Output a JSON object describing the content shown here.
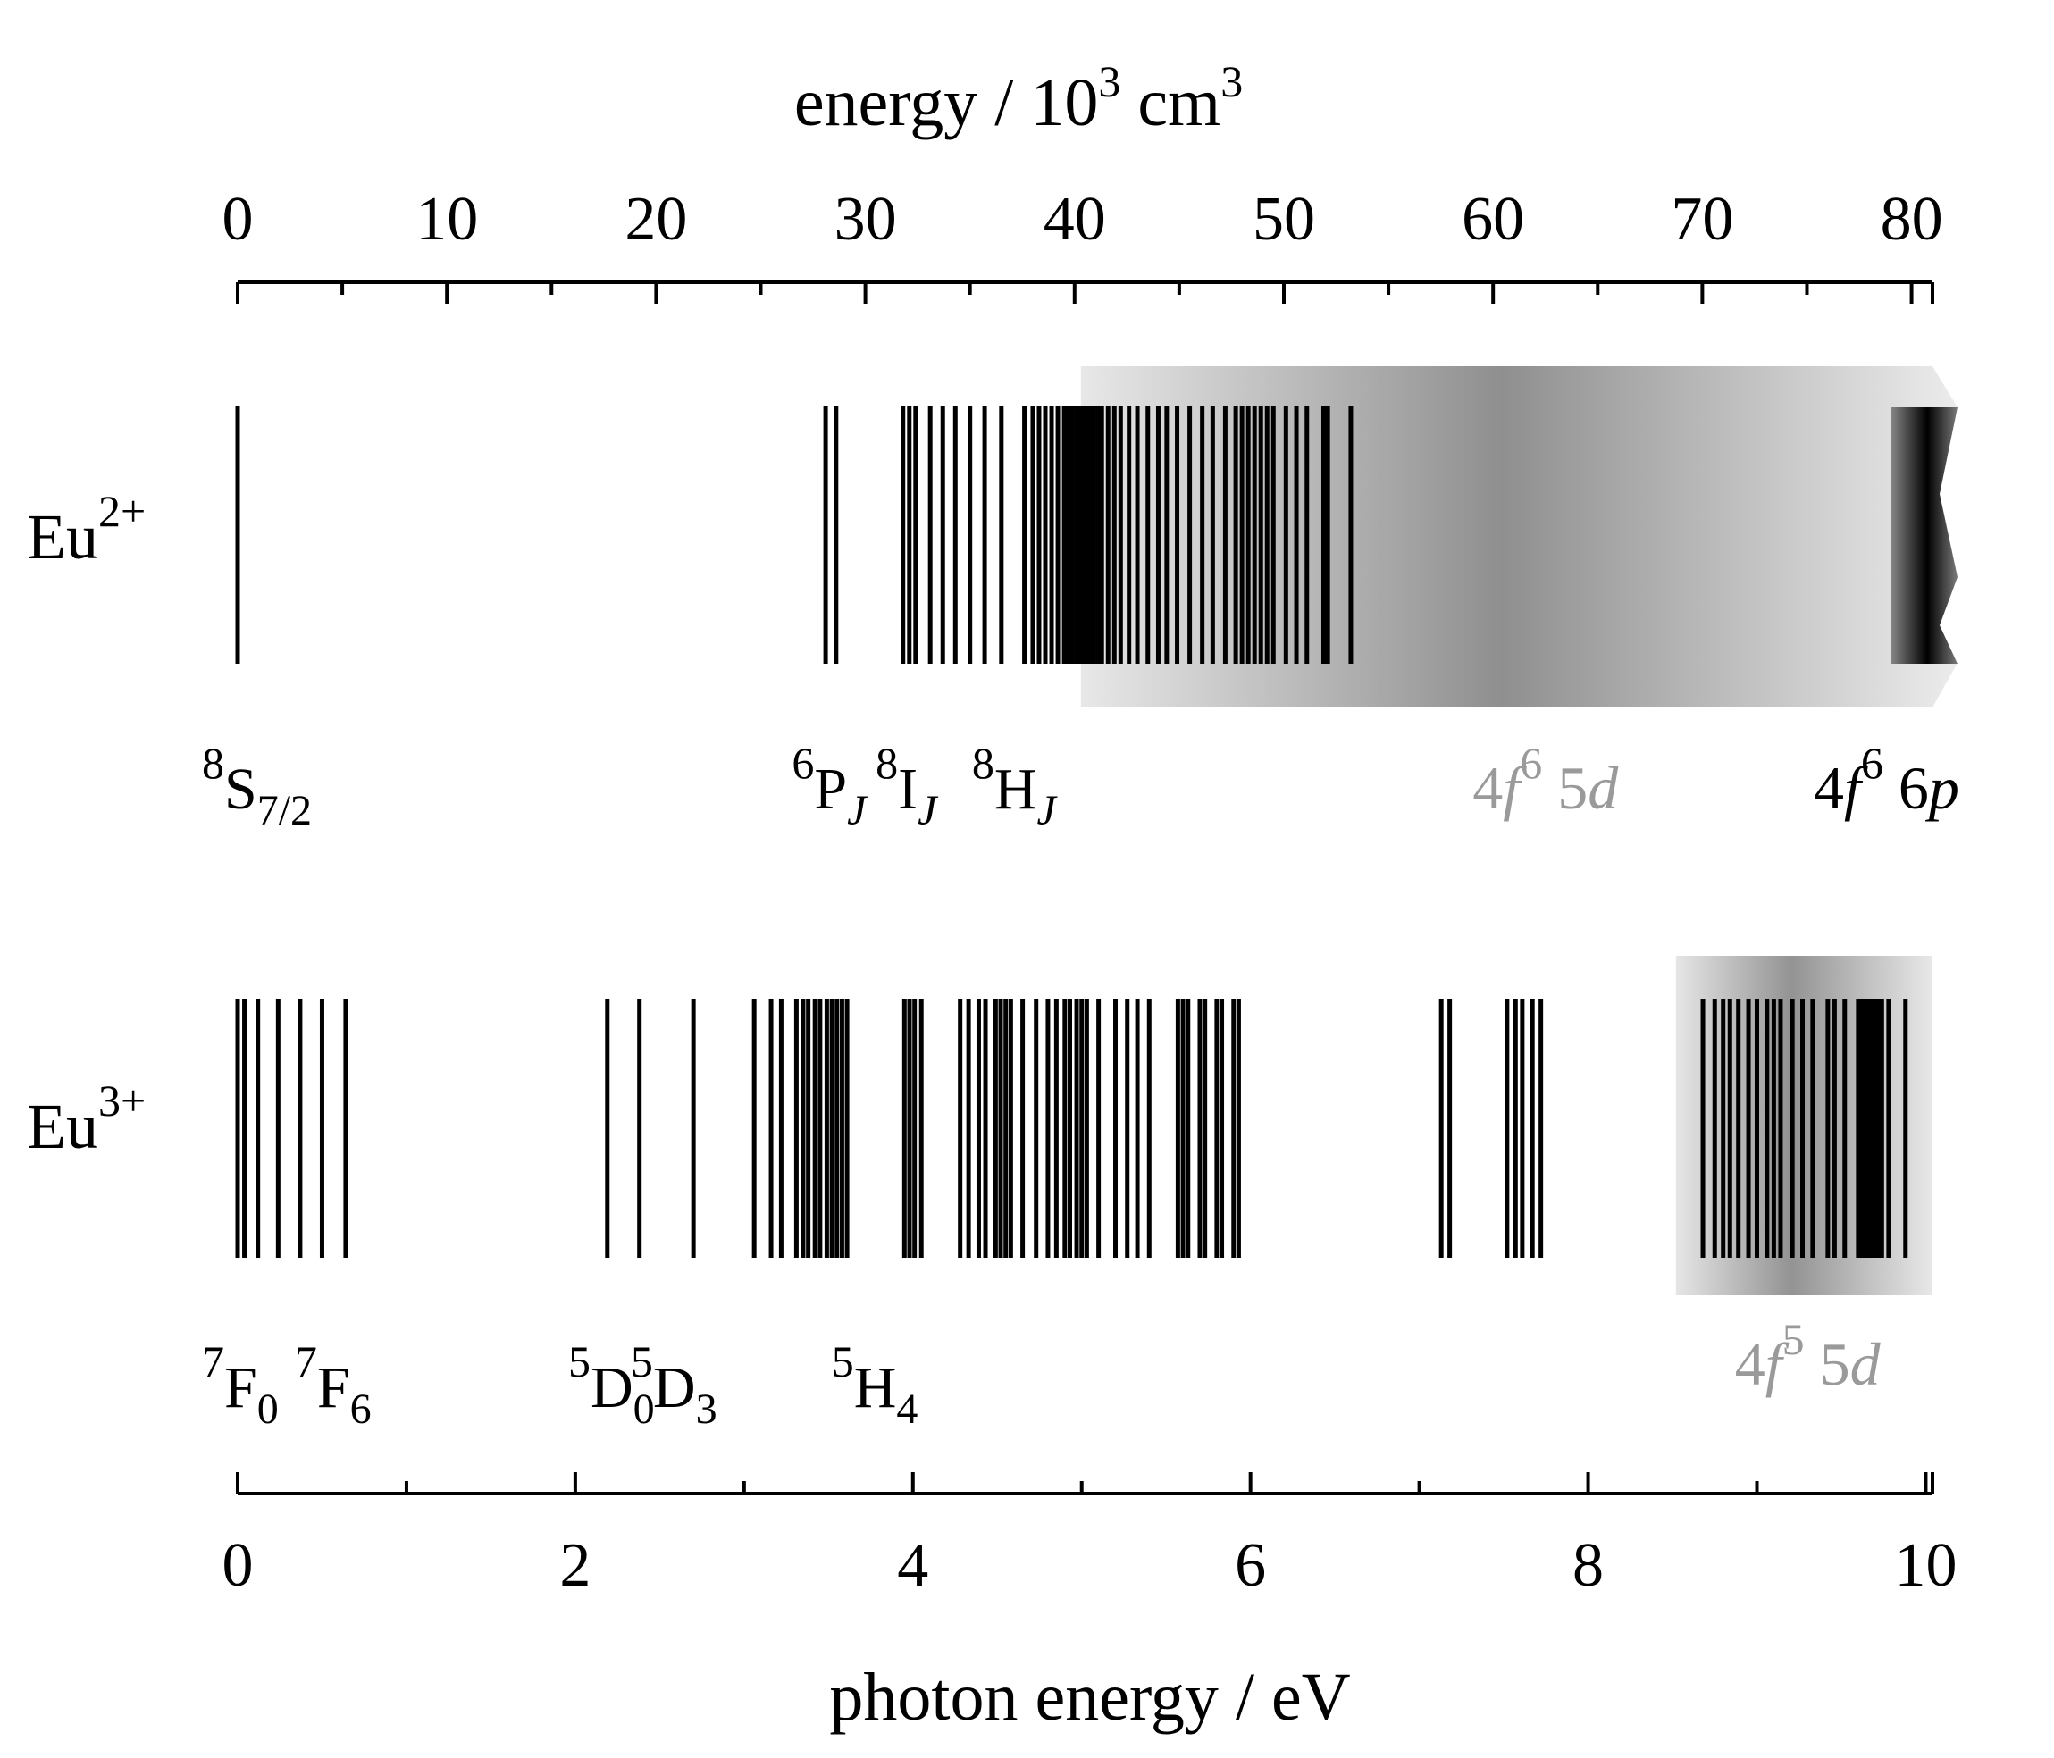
{
  "chart_data": {
    "type": "energy-level-diagram",
    "top_axis": {
      "label": "energy / 10",
      "label_sup": "3",
      "label_unit": "cm",
      "label_unit_sup": "3",
      "range": [
        0,
        81
      ],
      "major_ticks": [
        0,
        10,
        20,
        30,
        40,
        50,
        60,
        70,
        80
      ],
      "tick_labels": [
        "0",
        "10",
        "20",
        "30",
        "40",
        "50",
        "60",
        "70",
        "80"
      ]
    },
    "bottom_axis": {
      "label": "photon energy / eV",
      "range": [
        0,
        10.04
      ],
      "major_ticks": [
        0,
        2,
        4,
        6,
        8,
        10
      ],
      "tick_labels": [
        "0",
        "2",
        "4",
        "6",
        "8",
        "10"
      ]
    },
    "rows": [
      {
        "ion": "Eu",
        "charge": "2+",
        "axis": "top",
        "units": "10^3 cm^-1",
        "levels": [
          0,
          28.1,
          28.6,
          31.8,
          32.1,
          32.4,
          33.1,
          33.7,
          34.3,
          35.0,
          35.7,
          36.5,
          37.6,
          38.0,
          38.3,
          38.6,
          38.9,
          39.2,
          39.5,
          39.7,
          39.9,
          40.1,
          40.3,
          40.5,
          40.7,
          40.9,
          41.1,
          41.3,
          41.6,
          41.9,
          42.2,
          42.6,
          43.0,
          43.5,
          44.0,
          44.4,
          44.9,
          45.5,
          46.1,
          46.6,
          47.2,
          47.7,
          48.0,
          48.3,
          48.6,
          48.9,
          49.2,
          49.5,
          50.1,
          50.6,
          51.1,
          51.9,
          52.1,
          53.2
        ],
        "bands": [
          {
            "config": "4f^6 5d",
            "start": 40.3,
            "end": 81.5,
            "shade": "gradient",
            "peak": 60,
            "color_peak": "#8f8f8f",
            "color_edge": "#e8e8e8"
          },
          {
            "config": "4f^6 6p",
            "start": 79.0,
            "end": 81.0,
            "shade": "dark-gradient",
            "color_peak": "#000000",
            "color_edge": "#888888"
          }
        ],
        "term_labels": [
          {
            "base": "8",
            "term": "S",
            "sub": "7/2",
            "at": 0
          },
          {
            "base": "6",
            "term": "P",
            "sub": "J",
            "at": 28.2
          },
          {
            "base": "8",
            "term": "I",
            "sub": "J",
            "at": 32.2
          },
          {
            "base": "8",
            "term": "H",
            "sub": "J",
            "at": 36.8
          }
        ],
        "config_labels": [
          {
            "pre": "4",
            "ital": "f",
            "sup": "6",
            "post": " 5",
            "ital2": "d",
            "color": "#9a9a9a",
            "at": 62.5
          },
          {
            "pre": "4",
            "ital": "f",
            "sup": "6",
            "post": " 6",
            "ital2": "p",
            "color": "#000000",
            "at": 78.8
          }
        ]
      },
      {
        "ion": "Eu",
        "charge": "3+",
        "axis": "bottom",
        "units": "eV",
        "levels": [
          0.0,
          0.04,
          0.12,
          0.24,
          0.37,
          0.5,
          0.64,
          2.19,
          2.38,
          2.7,
          3.06,
          3.16,
          3.22,
          3.31,
          3.35,
          3.38,
          3.42,
          3.45,
          3.49,
          3.52,
          3.55,
          3.58,
          3.61,
          3.95,
          3.98,
          4.01,
          4.05,
          4.28,
          4.33,
          4.39,
          4.43,
          4.49,
          4.52,
          4.55,
          4.58,
          4.65,
          4.73,
          4.8,
          4.85,
          4.9,
          4.93,
          4.97,
          5.0,
          5.03,
          5.1,
          5.2,
          5.27,
          5.33,
          5.4,
          5.57,
          5.6,
          5.63,
          5.7,
          5.73,
          5.8,
          5.83,
          5.9,
          5.93,
          7.13,
          7.18,
          7.52,
          7.57,
          7.61,
          7.67,
          7.72,
          8.68,
          8.75,
          8.8,
          8.84,
          8.89,
          8.95,
          9.0,
          9.06,
          9.1,
          9.14,
          9.21,
          9.27,
          9.33,
          9.42,
          9.46,
          9.52,
          9.6,
          9.62,
          9.64,
          9.66,
          9.68,
          9.7,
          9.72,
          9.74,
          9.78,
          9.88
        ],
        "bands": [
          {
            "config": "4f^5 5d",
            "start": 8.52,
            "end": 10.04,
            "shade": "gradient",
            "peak": 9.25,
            "color_peak": "#939393",
            "color_edge": "#e6e6e6"
          }
        ],
        "term_labels": [
          {
            "base": "7",
            "term": "F",
            "sub": "0",
            "at": 0
          },
          {
            "base": "7",
            "term": "F",
            "sub": "6",
            "at": 0.55
          },
          {
            "base": "5",
            "term": "D",
            "sub": "0",
            "at": 2.17
          },
          {
            "base": "5",
            "term": "D",
            "sub": "3",
            "at": 2.54
          },
          {
            "base": "5",
            "term": "H",
            "sub": "4",
            "at": 3.73
          }
        ],
        "config_labels": [
          {
            "pre": "4",
            "ital": "f",
            "sup": "5",
            "post": " 5",
            "ital2": "d",
            "color": "#9a9a9a",
            "at": 9.3
          }
        ]
      }
    ]
  }
}
